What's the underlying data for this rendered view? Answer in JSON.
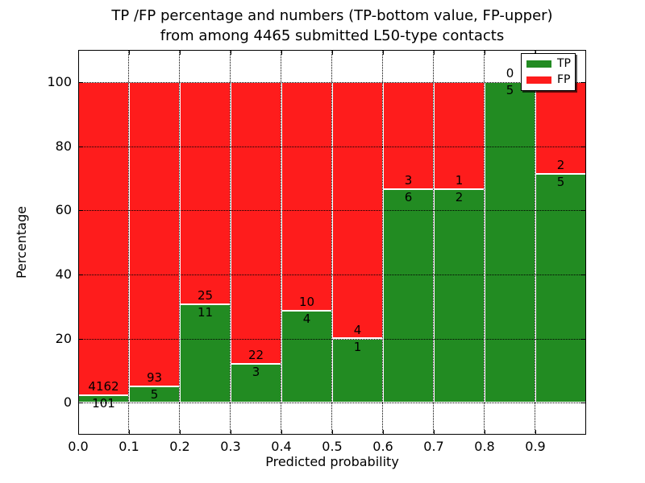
{
  "figure": {
    "title_line1": "TP /FP percentage and numbers (TP-bottom value, FP-upper)",
    "title_line2": "from among 4465 submitted L50-type contacts"
  },
  "chart_data": {
    "type": "bar",
    "stacked": true,
    "unit": "percent",
    "title": "TP /FP percentage and numbers (TP-bottom value, FP-upper) from among 4465 submitted L50-type contacts",
    "xlabel": "Predicted probability",
    "ylabel": "Percentage",
    "xlim": [
      0.0,
      1.0
    ],
    "ylim": [
      -10,
      110
    ],
    "x_tick_labels": [
      "0.0",
      "0.1",
      "0.2",
      "0.3",
      "0.4",
      "0.5",
      "0.6",
      "0.7",
      "0.8",
      "0.9"
    ],
    "y_tick_values": [
      0,
      20,
      40,
      60,
      80,
      100
    ],
    "bin_edges": [
      0.0,
      0.1,
      0.2,
      0.3,
      0.4,
      0.5,
      0.6,
      0.7,
      0.8,
      0.9,
      1.0
    ],
    "total_contacts": 4465,
    "series": [
      {
        "name": "TP",
        "color": "#228b22",
        "counts": [
          101,
          5,
          11,
          3,
          4,
          1,
          6,
          2,
          5,
          5
        ]
      },
      {
        "name": "FP",
        "color": "#fe1c1c",
        "counts": [
          4162,
          93,
          25,
          22,
          10,
          4,
          3,
          1,
          0,
          2
        ]
      }
    ],
    "tp_percent_heights": [
      2.4,
      5.1,
      30.6,
      12.0,
      28.6,
      20.0,
      66.7,
      66.7,
      100.0,
      71.4
    ],
    "legend": {
      "position": "upper right",
      "entries": [
        "TP",
        "FP"
      ]
    },
    "grid": {
      "linestyle": "dotted",
      "color": "#000000"
    },
    "bar_edge_color": "#ffffff",
    "background_color": "#ffffff"
  }
}
